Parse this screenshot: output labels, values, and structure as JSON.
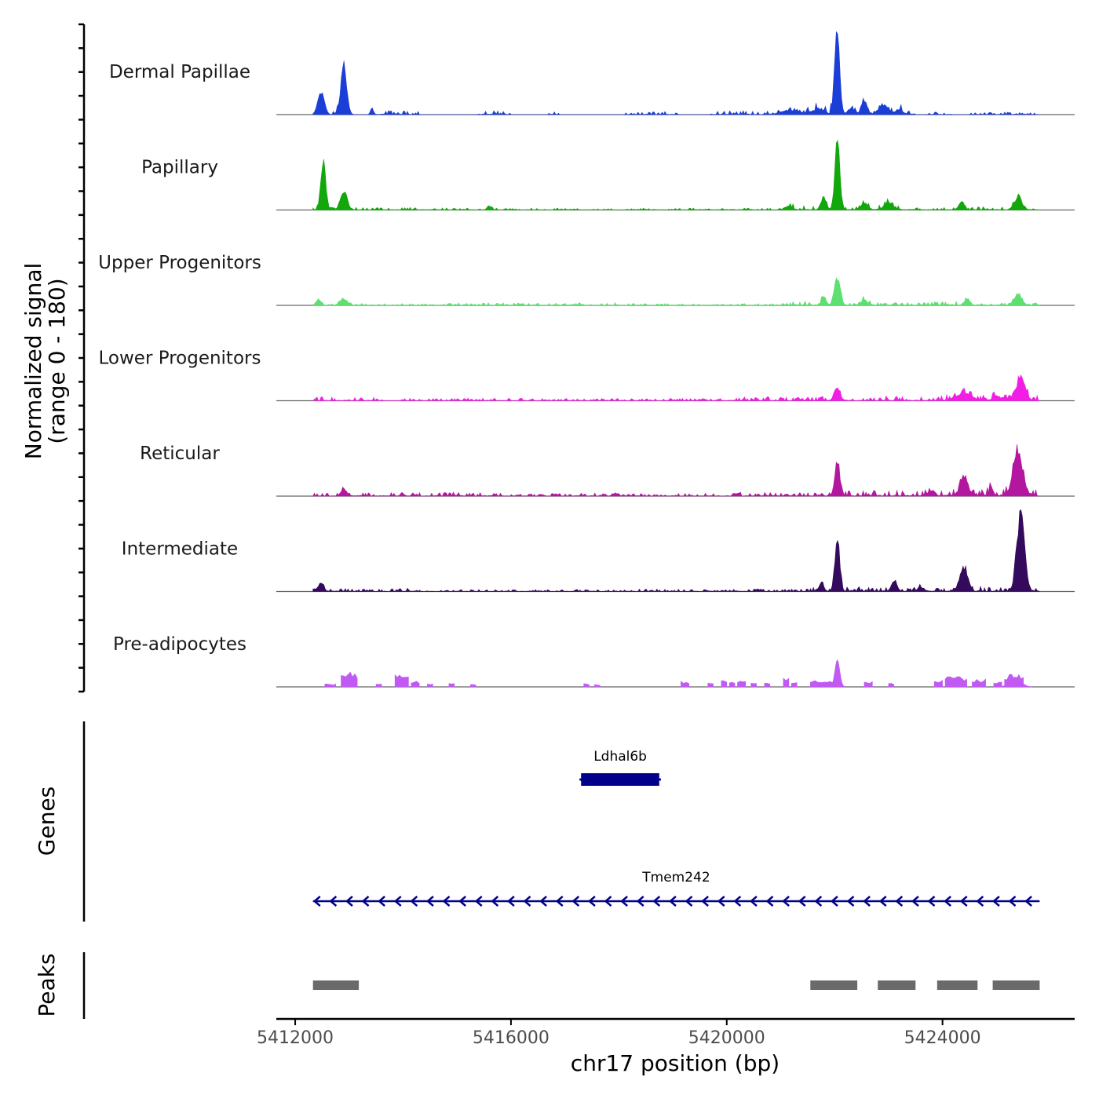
{
  "chart_data": {
    "type": "area",
    "title": "",
    "xlabel": "chr17 position (bp)",
    "ylabel": "Normalized signal",
    "ylabel_range": "(range 0 - 180)",
    "xlim": [
      5411650,
      5426450
    ],
    "ylim": [
      0,
      180
    ],
    "x_ticks": [
      5412000,
      5416000,
      5420000,
      5424000
    ],
    "x_tick_labels": [
      "5412000",
      "5416000",
      "5420000",
      "5424000"
    ],
    "region_start": 5412330,
    "region_end": 5425800,
    "tracks": [
      {
        "name": "Dermal Papillae",
        "color": "#1a3ed6",
        "peaks": [
          [
            5412480,
            45,
            60
          ],
          [
            5412900,
            95,
            55
          ],
          [
            5413420,
            14,
            25
          ],
          [
            5421200,
            8,
            160
          ],
          [
            5421700,
            10,
            100
          ],
          [
            5422050,
            170,
            45
          ],
          [
            5422300,
            12,
            60
          ],
          [
            5422550,
            28,
            50
          ],
          [
            5422900,
            18,
            90
          ],
          [
            5423200,
            10,
            60
          ]
        ],
        "noise": [
          [
            5412700,
            5413000,
            10
          ],
          [
            5413450,
            5414300,
            7
          ],
          [
            5415400,
            5416000,
            6
          ],
          [
            5416700,
            5416900,
            5
          ],
          [
            5418100,
            5419100,
            5
          ],
          [
            5419700,
            5420800,
            6
          ],
          [
            5420800,
            5421500,
            7
          ],
          [
            5421500,
            5422050,
            14
          ],
          [
            5422300,
            5423500,
            8
          ],
          [
            5423700,
            5424200,
            4
          ],
          [
            5424500,
            5425800,
            4
          ]
        ]
      },
      {
        "name": "Papillary",
        "color": "#12a80c",
        "peaks": [
          [
            5412520,
            100,
            45
          ],
          [
            5412900,
            38,
            60
          ],
          [
            5415600,
            8,
            40
          ],
          [
            5421150,
            9,
            60
          ],
          [
            5421800,
            18,
            40
          ],
          [
            5422050,
            135,
            45
          ],
          [
            5422550,
            12,
            60
          ],
          [
            5423000,
            14,
            80
          ],
          [
            5424350,
            16,
            50
          ],
          [
            5425400,
            24,
            70
          ]
        ],
        "noise": [
          [
            5412330,
            5415000,
            4
          ],
          [
            5415000,
            5418000,
            3
          ],
          [
            5418000,
            5421000,
            3
          ],
          [
            5421000,
            5422500,
            7
          ],
          [
            5422500,
            5423500,
            7
          ],
          [
            5423500,
            5424500,
            4
          ],
          [
            5424500,
            5425800,
            5
          ]
        ]
      },
      {
        "name": "Upper Progenitors",
        "color": "#5ee070",
        "peaks": [
          [
            5412430,
            12,
            45
          ],
          [
            5412900,
            12,
            70
          ],
          [
            5421800,
            18,
            40
          ],
          [
            5422050,
            55,
            50
          ],
          [
            5422550,
            10,
            60
          ],
          [
            5424450,
            10,
            50
          ],
          [
            5425400,
            22,
            70
          ]
        ],
        "noise": [
          [
            5412330,
            5415000,
            3
          ],
          [
            5415000,
            5418000,
            4
          ],
          [
            5418000,
            5421000,
            3
          ],
          [
            5421000,
            5423000,
            7
          ],
          [
            5423000,
            5424500,
            6
          ],
          [
            5424500,
            5425800,
            4
          ]
        ]
      },
      {
        "name": "Lower Progenitors",
        "color": "#f21ee6",
        "peaks": [
          [
            5422050,
            25,
            50
          ],
          [
            5424400,
            14,
            140
          ],
          [
            5425000,
            10,
            60
          ],
          [
            5425450,
            45,
            80
          ]
        ],
        "noise": [
          [
            5412330,
            5413500,
            6
          ],
          [
            5413500,
            5416000,
            4
          ],
          [
            5416000,
            5420000,
            4
          ],
          [
            5420000,
            5421600,
            6
          ],
          [
            5421600,
            5424000,
            7
          ],
          [
            5424000,
            5425800,
            9
          ]
        ]
      },
      {
        "name": "Reticular",
        "color": "#b3169f",
        "peaks": [
          [
            5412900,
            14,
            50
          ],
          [
            5422050,
            65,
            45
          ],
          [
            5423800,
            10,
            60
          ],
          [
            5424400,
            40,
            70
          ],
          [
            5424900,
            14,
            40
          ],
          [
            5425400,
            85,
            90
          ]
        ],
        "noise": [
          [
            5412330,
            5416000,
            6
          ],
          [
            5416000,
            5420000,
            5
          ],
          [
            5420000,
            5422000,
            6
          ],
          [
            5422000,
            5424000,
            9
          ],
          [
            5424000,
            5425800,
            12
          ]
        ]
      },
      {
        "name": "Intermediate",
        "color": "#340a5c",
        "peaks": [
          [
            5412480,
            18,
            45
          ],
          [
            5421750,
            14,
            45
          ],
          [
            5422050,
            100,
            45
          ],
          [
            5423100,
            20,
            50
          ],
          [
            5423600,
            8,
            60
          ],
          [
            5424400,
            48,
            70
          ],
          [
            5425450,
            155,
            70
          ]
        ],
        "noise": [
          [
            5412330,
            5414500,
            5
          ],
          [
            5414500,
            5418000,
            3
          ],
          [
            5418000,
            5421500,
            4
          ],
          [
            5421500,
            5423000,
            7
          ],
          [
            5423000,
            5424500,
            6
          ],
          [
            5424500,
            5425800,
            9
          ]
        ]
      },
      {
        "name": "Pre-adipocytes",
        "color": "#c05af2",
        "peaks": [
          [
            5422050,
            55,
            45
          ],
          [
            5425350,
            20,
            100
          ]
        ],
        "blocks": [
          [
            5412550,
            5412750,
            6
          ],
          [
            5412850,
            5413150,
            32
          ],
          [
            5413500,
            5413600,
            7
          ],
          [
            5413850,
            5414100,
            28
          ],
          [
            5414150,
            5414300,
            12
          ],
          [
            5414450,
            5414550,
            7
          ],
          [
            5414850,
            5414950,
            7
          ],
          [
            5415250,
            5415350,
            6
          ],
          [
            5417350,
            5417450,
            7
          ],
          [
            5417550,
            5417650,
            6
          ],
          [
            5419150,
            5419300,
            12
          ],
          [
            5419650,
            5419750,
            8
          ],
          [
            5419900,
            5420000,
            14
          ],
          [
            5420050,
            5420150,
            10
          ],
          [
            5420200,
            5420350,
            12
          ],
          [
            5420450,
            5420550,
            8
          ],
          [
            5420700,
            5420800,
            10
          ],
          [
            5421050,
            5421150,
            18
          ],
          [
            5421200,
            5421300,
            10
          ],
          [
            5421550,
            5422000,
            14
          ],
          [
            5422550,
            5422700,
            12
          ],
          [
            5423000,
            5423100,
            8
          ],
          [
            5423850,
            5424000,
            14
          ],
          [
            5424050,
            5424450,
            22
          ],
          [
            5424550,
            5424800,
            16
          ],
          [
            5424950,
            5425100,
            10
          ],
          [
            5425150,
            5425500,
            26
          ]
        ]
      }
    ],
    "gene_axis_label": "Genes",
    "genes": [
      {
        "name": "Ldhal6b",
        "start": 5417300,
        "end": 5418750,
        "strand": "-",
        "row": 0
      },
      {
        "name": "Tmem242",
        "start": 5412330,
        "end": 5425800,
        "strand": "-",
        "row": 1
      }
    ],
    "gene_color": "#00008b",
    "peaks_axis_label": "Peaks",
    "peak_regions": [
      [
        5412330,
        5413180
      ],
      [
        5421550,
        5422420
      ],
      [
        5422800,
        5423500
      ],
      [
        5423900,
        5424650
      ],
      [
        5424930,
        5425800
      ]
    ],
    "peak_color": "#6a6a6a"
  }
}
